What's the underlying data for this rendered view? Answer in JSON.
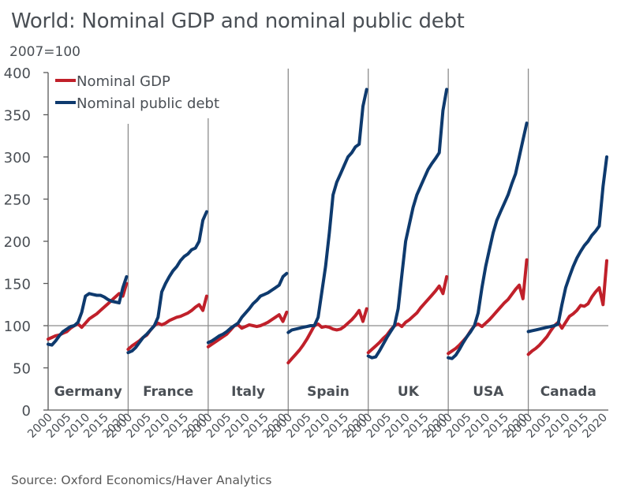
{
  "title": "World: Nominal GDP and nominal public debt",
  "units_label": "2007=100",
  "source": "Source: Oxford Economics/Haver Analytics",
  "chart_data": {
    "type": "line",
    "title": "World: Nominal GDP and nominal public debt",
    "ylabel": "2007=100",
    "xlabel": "",
    "ylim": [
      0,
      400
    ],
    "yticks": [
      0,
      50,
      100,
      150,
      200,
      250,
      300,
      350,
      400
    ],
    "xlim": [
      2000,
      2021
    ],
    "xticks": [
      "2000",
      "2005",
      "2010",
      "2015",
      "2020"
    ],
    "reference_line": 100,
    "grid": false,
    "legend": {
      "placement": "top-left",
      "entries": [
        {
          "name": "Nominal GDP",
          "color": "#c0202a"
        },
        {
          "name": "Nominal public debt",
          "color": "#0e3a6e"
        }
      ]
    },
    "x": [
      2000,
      2001,
      2002,
      2003,
      2004,
      2005,
      2006,
      2007,
      2008,
      2009,
      2010,
      2011,
      2012,
      2013,
      2014,
      2015,
      2016,
      2017,
      2018,
      2019,
      2020,
      2021
    ],
    "panels": [
      {
        "name": "Germany",
        "series": [
          {
            "name": "Nominal GDP",
            "values": [
              84,
              86,
              88,
              89,
              91,
              93,
              97,
              100,
              102,
              98,
              103,
              108,
              111,
              114,
              118,
              122,
              126,
              130,
              134,
              138,
              135,
              150
            ]
          },
          {
            "name": "Nominal public debt",
            "values": [
              78,
              77,
              82,
              88,
              93,
              96,
              99,
              100,
              104,
              116,
              135,
              138,
              137,
              136,
              136,
              134,
              131,
              129,
              128,
              127,
              145,
              158
            ]
          }
        ]
      },
      {
        "name": "France",
        "series": [
          {
            "name": "Nominal GDP",
            "values": [
              72,
              76,
              79,
              82,
              86,
              89,
              95,
              100,
              103,
              101,
              103,
              106,
              108,
              110,
              111,
              113,
              115,
              118,
              122,
              125,
              118,
              135
            ]
          },
          {
            "name": "Nominal public debt",
            "values": [
              68,
              70,
              74,
              80,
              86,
              90,
              95,
              100,
              110,
              140,
              150,
              158,
              165,
              170,
              177,
              182,
              185,
              190,
              192,
              200,
              225,
              235
            ]
          }
        ]
      },
      {
        "name": "Italy",
        "series": [
          {
            "name": "Nominal GDP",
            "values": [
              75,
              78,
              81,
              84,
              87,
              90,
              95,
              100,
              101,
              97,
              99,
              101,
              100,
              99,
              100,
              102,
              104,
              107,
              110,
              113,
              105,
              116
            ]
          },
          {
            "name": "Nominal public debt",
            "values": [
              80,
              82,
              85,
              88,
              90,
              93,
              97,
              100,
              103,
              110,
              115,
              120,
              126,
              130,
              135,
              137,
              139,
              142,
              145,
              148,
              158,
              162
            ]
          }
        ]
      },
      {
        "name": "Spain",
        "series": [
          {
            "name": "Nominal GDP",
            "values": [
              56,
              61,
              66,
              71,
              77,
              84,
              92,
              100,
              102,
              98,
              99,
              98,
              96,
              95,
              96,
              99,
              103,
              107,
              112,
              118,
              105,
              120
            ]
          },
          {
            "name": "Nominal public debt",
            "values": [
              92,
              95,
              96,
              97,
              98,
              99,
              100,
              100,
              110,
              140,
              170,
              210,
              255,
              270,
              280,
              290,
              300,
              305,
              312,
              315,
              360,
              380
            ]
          }
        ]
      },
      {
        "name": "UK",
        "series": [
          {
            "name": "Nominal GDP",
            "values": [
              68,
              72,
              76,
              80,
              85,
              89,
              95,
              100,
              102,
              99,
              104,
              107,
              111,
              115,
              121,
              126,
              131,
              136,
              141,
              147,
              138,
              158
            ]
          },
          {
            "name": "Nominal public debt",
            "values": [
              64,
              62,
              63,
              70,
              78,
              86,
              93,
              100,
              120,
              160,
              200,
              220,
              240,
              255,
              265,
              275,
              285,
              292,
              298,
              305,
              355,
              380
            ]
          }
        ]
      },
      {
        "name": "USA",
        "series": [
          {
            "name": "Nominal GDP",
            "values": [
              67,
              70,
              73,
              77,
              82,
              87,
              94,
              100,
              102,
              99,
              103,
              107,
              112,
              117,
              122,
              127,
              131,
              137,
              143,
              148,
              132,
              178
            ]
          },
          {
            "name": "Nominal public debt",
            "values": [
              62,
              61,
              65,
              72,
              80,
              87,
              93,
              100,
              115,
              145,
              170,
              190,
              210,
              225,
              235,
              245,
              255,
              268,
              280,
              300,
              320,
              340
            ]
          }
        ]
      },
      {
        "name": "Canada",
        "series": [
          {
            "name": "Nominal GDP",
            "values": [
              66,
              70,
              73,
              77,
              82,
              87,
              94,
              100,
              104,
              97,
              104,
              111,
              114,
              118,
              124,
              123,
              126,
              134,
              140,
              145,
              125,
              177
            ]
          },
          {
            "name": "Nominal public debt",
            "values": [
              93,
              94,
              95,
              96,
              97,
              98,
              99,
              100,
              102,
              125,
              145,
              158,
              170,
              180,
              188,
              195,
              200,
              207,
              212,
              218,
              265,
              300
            ]
          }
        ]
      }
    ]
  }
}
